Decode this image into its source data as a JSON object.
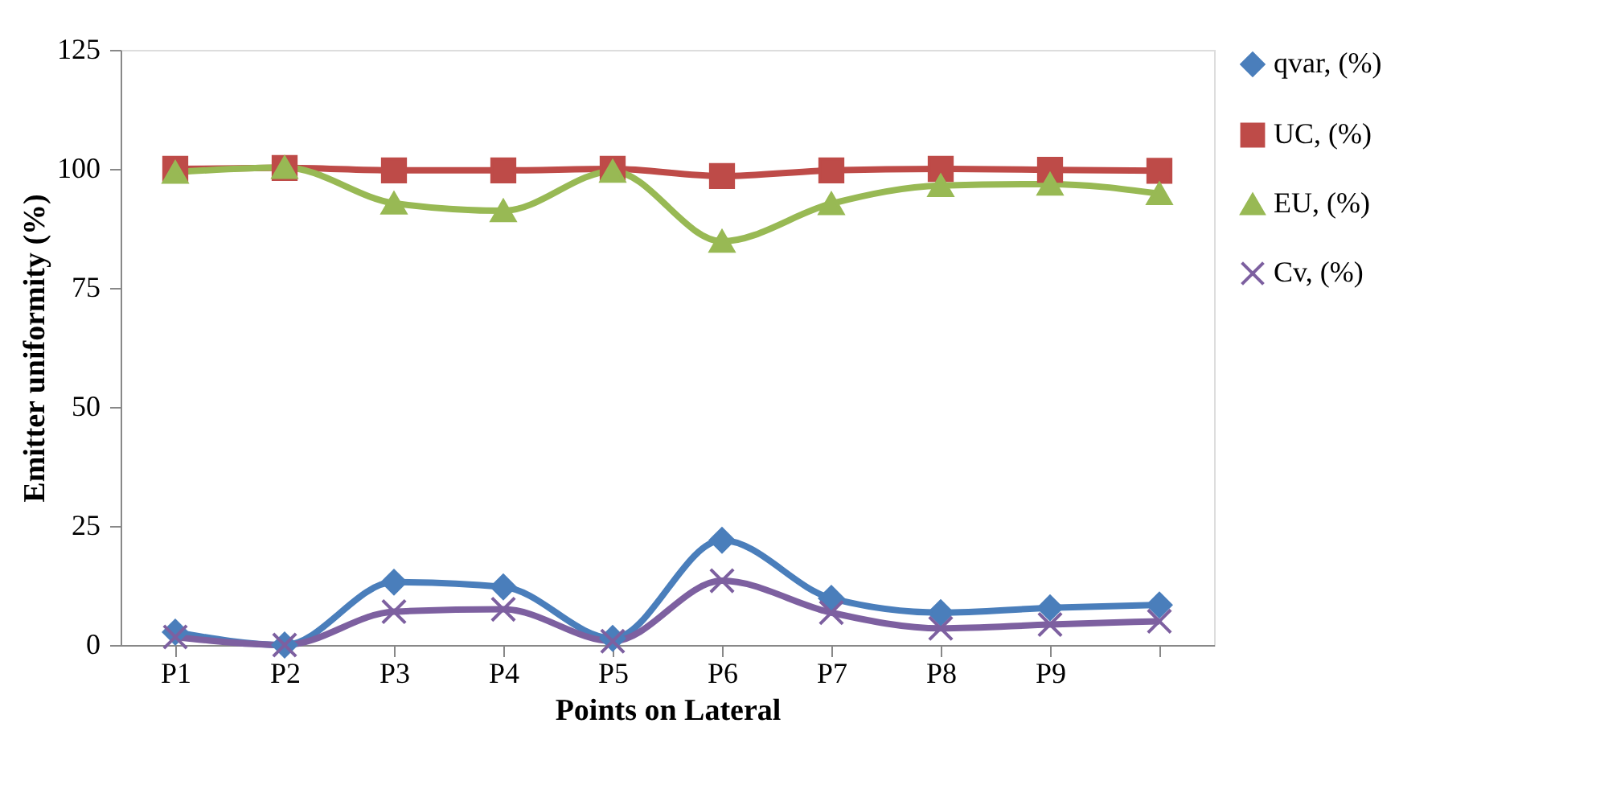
{
  "chart_data": {
    "type": "line",
    "xlabel": "Points on Lateral",
    "ylabel": "Emitter uniformity (%)",
    "categories": [
      "P1",
      "P2",
      "P3",
      "P4",
      "P5",
      "P6",
      "P7",
      "P8",
      "P9",
      null
    ],
    "series": [
      {
        "name": "qvar, (%)",
        "color": "#4a7ebb",
        "marker": "diamond",
        "values": [
          2.7,
          0,
          13.2,
          12.2,
          1.4,
          22,
          9.8,
          6.8,
          7.8,
          8.4
        ]
      },
      {
        "name": "UC, (%)",
        "color": "#be4b48",
        "marker": "square",
        "values": [
          100,
          100.2,
          99.7,
          99.7,
          100,
          98.5,
          99.7,
          100,
          99.8,
          99.6
        ]
      },
      {
        "name": "EU, (%)",
        "color": "#98b954",
        "marker": "triangle",
        "values": [
          99.3,
          100.3,
          92.8,
          91.2,
          99.5,
          84.8,
          92.7,
          96.5,
          96.8,
          94.8
        ]
      },
      {
        "name": "Cv, (%)",
        "color": "#7d60a0",
        "marker": "cross",
        "values": [
          1.7,
          0,
          7,
          7.5,
          0.8,
          13.5,
          6.8,
          3.5,
          4.3,
          5
        ]
      }
    ],
    "ylim": [
      0,
      125
    ],
    "yticks": [
      0,
      25,
      50,
      75,
      100,
      125
    ],
    "grid": false,
    "legend": "right",
    "line_style": "solid"
  }
}
